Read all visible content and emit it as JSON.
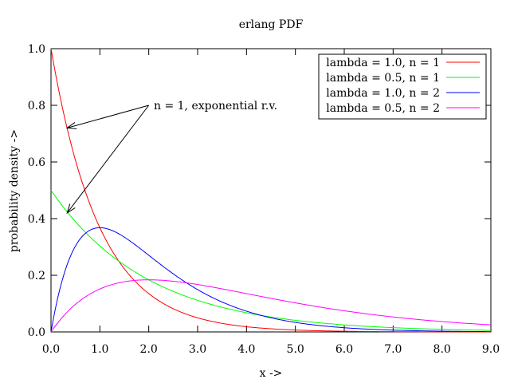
{
  "chart_data": {
    "type": "line",
    "title": "erlang PDF",
    "xlabel": "x ->",
    "ylabel": "probability density ->",
    "xlim": [
      0,
      9
    ],
    "ylim": [
      0,
      1
    ],
    "xticks": [
      "0.0",
      "1.0",
      "2.0",
      "3.0",
      "4.0",
      "5.0",
      "6.0",
      "7.0",
      "8.0",
      "9.0"
    ],
    "yticks": [
      "0.0",
      "0.2",
      "0.4",
      "0.6",
      "0.8",
      "1.0"
    ],
    "grid": false,
    "legend_position": "top-right",
    "series": [
      {
        "name": "lambda = 1.0, n = 1",
        "lambda": 1.0,
        "n": 1,
        "color": "#ff0000"
      },
      {
        "name": "lambda = 0.5, n = 1",
        "lambda": 0.5,
        "n": 1,
        "color": "#00ff00"
      },
      {
        "name": "lambda = 1.0, n = 2",
        "lambda": 1.0,
        "n": 2,
        "color": "#0000ff"
      },
      {
        "name": "lambda = 0.5, n = 2",
        "lambda": 0.5,
        "n": 2,
        "color": "#ff00ff"
      }
    ],
    "annotation": {
      "text": "n = 1, exponential r.v.",
      "from": [
        2.0,
        0.8
      ],
      "arrows_to": [
        [
          0.33,
          0.72
        ],
        [
          0.33,
          0.42
        ]
      ]
    }
  }
}
